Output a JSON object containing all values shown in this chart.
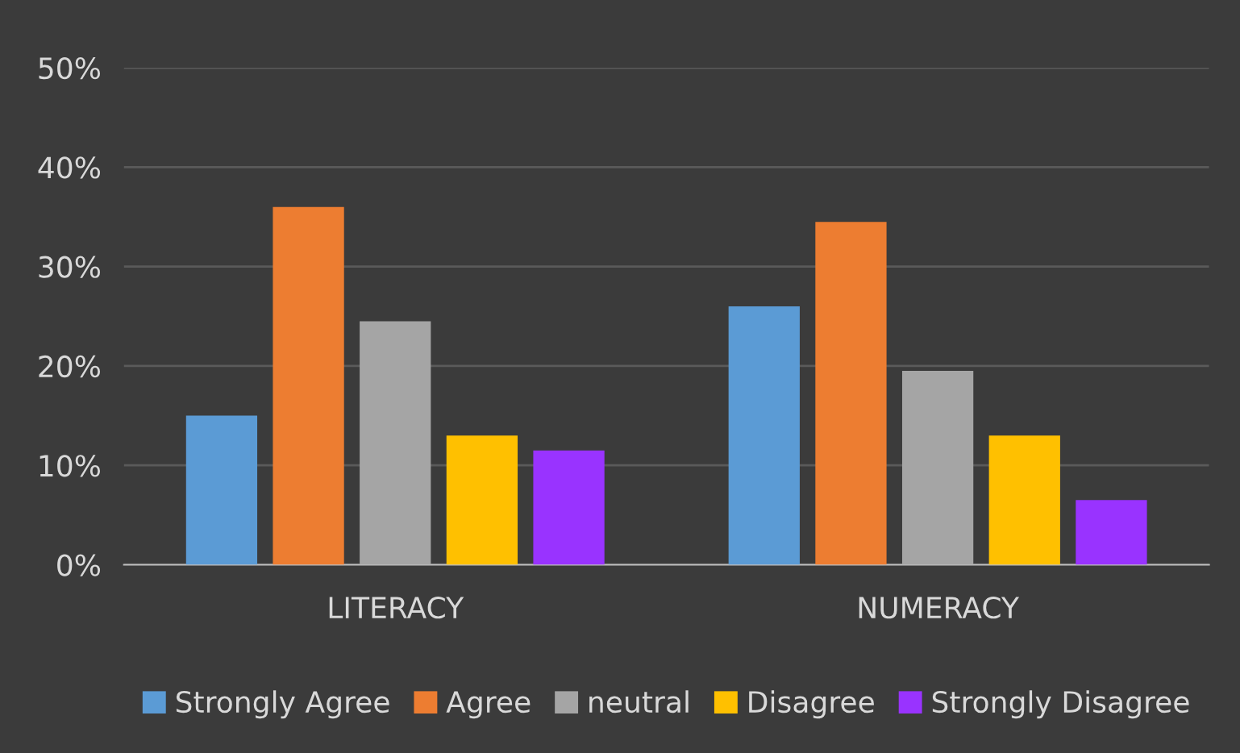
{
  "chart_data": {
    "type": "bar",
    "categories": [
      "LITERACY",
      "NUMERACY"
    ],
    "series": [
      {
        "name": "Strongly Agree",
        "color": "#5b9bd5",
        "values": [
          15,
          26
        ]
      },
      {
        "name": "Agree",
        "color": "#ed7d31",
        "values": [
          36,
          34.5
        ]
      },
      {
        "name": "neutral",
        "color": "#a5a5a5",
        "values": [
          24.5,
          19.5
        ]
      },
      {
        "name": "Disagree",
        "color": "#ffc000",
        "values": [
          13,
          13
        ]
      },
      {
        "name": "Strongly Disagree",
        "color": "#9933ff",
        "values": [
          11.5,
          6.5
        ]
      }
    ],
    "ylim": [
      0,
      50
    ],
    "yticks": [
      {
        "value": 0,
        "label": "0%"
      },
      {
        "value": 10,
        "label": "10%"
      },
      {
        "value": 20,
        "label": "20%"
      },
      {
        "value": 30,
        "label": "30%"
      },
      {
        "value": 40,
        "label": "40%"
      },
      {
        "value": 50,
        "label": "50%"
      }
    ],
    "grid": "y",
    "legend": "bottom"
  }
}
